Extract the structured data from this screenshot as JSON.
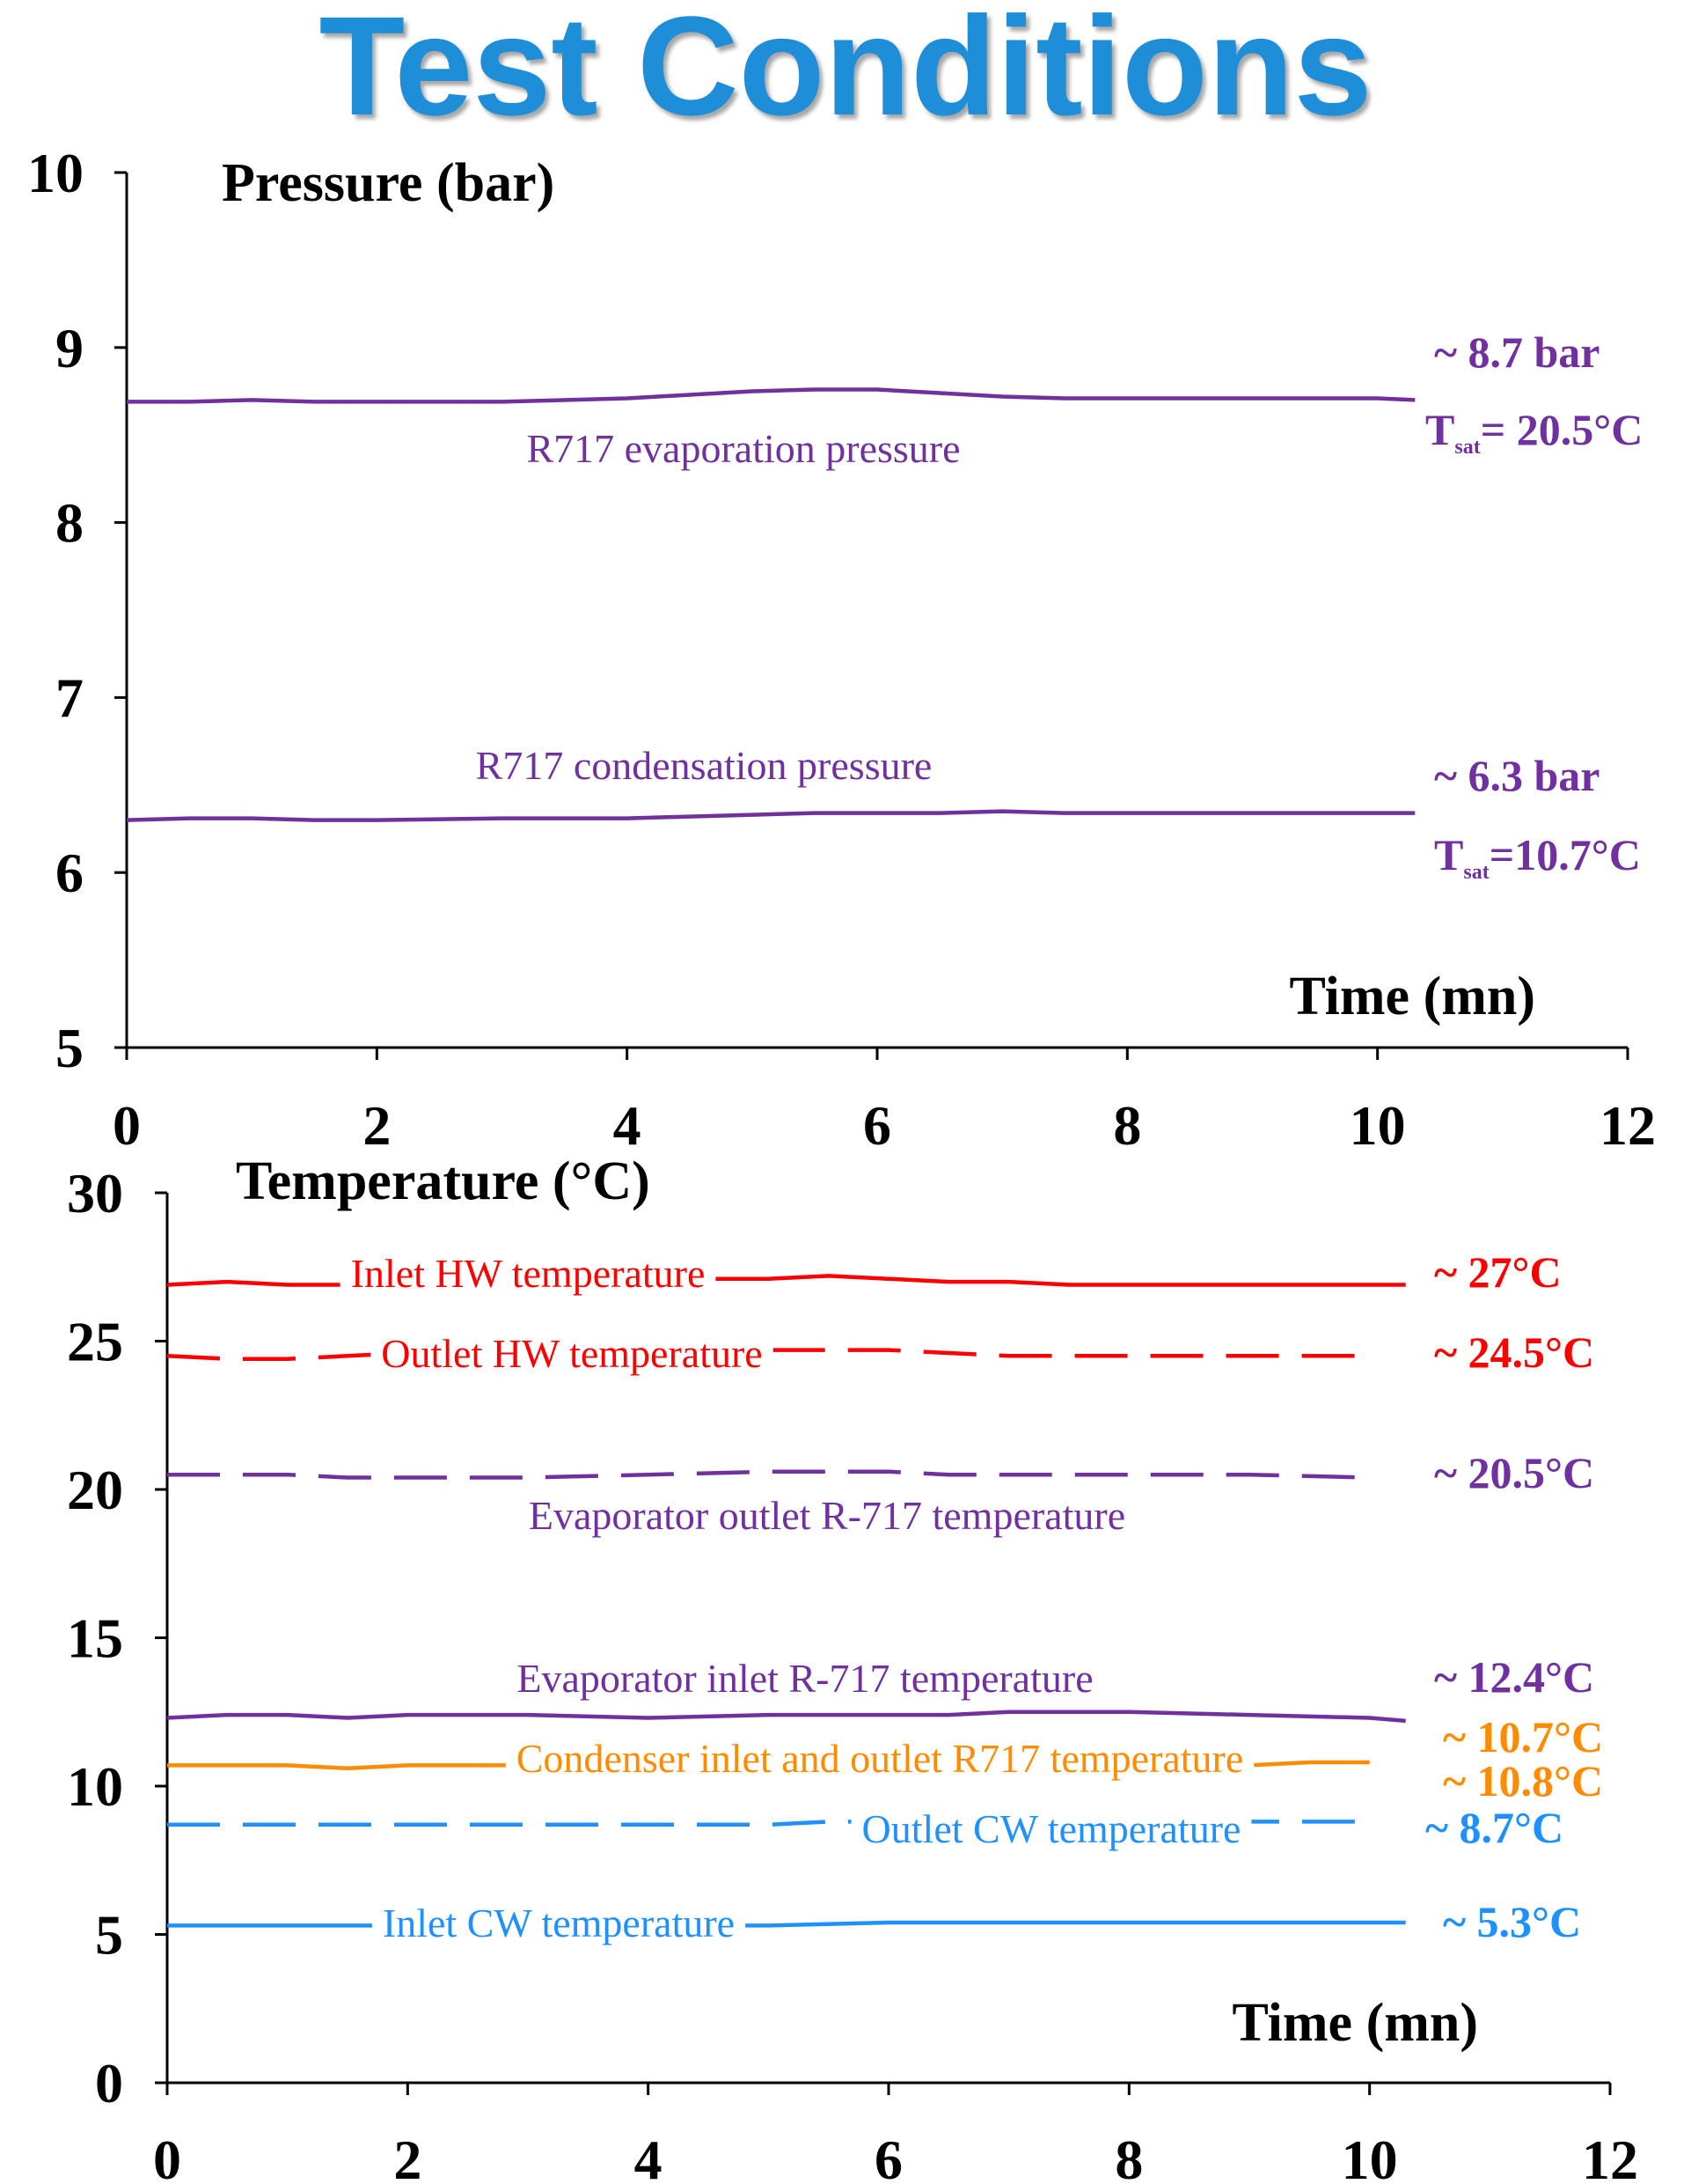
{
  "title": "Test Conditions",
  "chart_data": [
    {
      "type": "line",
      "title": "",
      "ylabel": "Pressure (bar)",
      "xlabel": "Time (mn)",
      "xlim": [
        0,
        12
      ],
      "ylim": [
        5,
        10
      ],
      "xticks": [
        "0",
        "2",
        "4",
        "6",
        "8",
        "10",
        "12"
      ],
      "yticks": [
        "5",
        "6",
        "7",
        "8",
        "9",
        "10"
      ],
      "grid": false,
      "series": [
        {
          "name": "R717 evaporation pressure",
          "color": "#7030a0",
          "style": "solid",
          "x": [
            0,
            0.5,
            1,
            1.5,
            2,
            3,
            4,
            4.5,
            5,
            5.5,
            6,
            6.5,
            7,
            7.5,
            8,
            8.5,
            9,
            9.5,
            10,
            10.3
          ],
          "y": [
            8.69,
            8.69,
            8.7,
            8.69,
            8.69,
            8.69,
            8.71,
            8.73,
            8.75,
            8.76,
            8.76,
            8.74,
            8.72,
            8.71,
            8.71,
            8.71,
            8.71,
            8.71,
            8.71,
            8.7
          ]
        },
        {
          "name": "R717 condensation pressure",
          "color": "#7030a0",
          "style": "solid",
          "x": [
            0,
            0.5,
            1,
            1.5,
            2,
            3,
            4,
            4.5,
            5,
            5.5,
            6,
            6.5,
            7,
            7.5,
            8,
            8.5,
            9,
            9.5,
            10,
            10.3
          ],
          "y": [
            6.3,
            6.31,
            6.31,
            6.3,
            6.3,
            6.31,
            6.31,
            6.32,
            6.33,
            6.34,
            6.34,
            6.34,
            6.35,
            6.34,
            6.34,
            6.34,
            6.34,
            6.34,
            6.34,
            6.34
          ]
        }
      ],
      "annotations": [
        {
          "text": "~ 8.7 bar",
          "color": "#7030a0"
        },
        {
          "text_main": "T",
          "text_sub": "sat",
          "text_rest": "= 20.5°C",
          "color": "#7030a0"
        },
        {
          "text": "~ 6.3 bar",
          "color": "#7030a0"
        },
        {
          "text_main": "T",
          "text_sub": "sat",
          "text_rest": "=10.7°C",
          "color": "#7030a0"
        }
      ]
    },
    {
      "type": "line",
      "title": "",
      "ylabel": "Temperature (°C)",
      "xlabel": "Time (mn)",
      "xlim": [
        0,
        12
      ],
      "ylim": [
        0,
        30
      ],
      "xticks": [
        "0",
        "2",
        "4",
        "6",
        "8",
        "10",
        "12"
      ],
      "yticks": [
        "0",
        "5",
        "10",
        "15",
        "20",
        "25",
        "30"
      ],
      "grid": false,
      "series": [
        {
          "name": "Inlet HW temperature",
          "color": "#ff0000",
          "style": "solid",
          "x": [
            0,
            0.5,
            1,
            1.5,
            2,
            3,
            4,
            5,
            5.5,
            6,
            6.5,
            7,
            7.5,
            8,
            9,
            10,
            10.3
          ],
          "y": [
            26.9,
            27.0,
            26.9,
            26.9,
            27.0,
            27.0,
            27.1,
            27.1,
            27.2,
            27.1,
            27.0,
            27.0,
            26.9,
            26.9,
            26.9,
            26.9,
            26.9
          ]
        },
        {
          "name": "Outlet HW temperature",
          "color": "#ff0000",
          "style": "dashed",
          "x": [
            0,
            0.5,
            1,
            1.5,
            2,
            3,
            4,
            5,
            5.5,
            6,
            6.5,
            7,
            7.5,
            8,
            9,
            10
          ],
          "y": [
            24.5,
            24.4,
            24.4,
            24.5,
            24.6,
            24.6,
            24.6,
            24.7,
            24.7,
            24.7,
            24.6,
            24.5,
            24.5,
            24.5,
            24.5,
            24.5
          ]
        },
        {
          "name": "Evaporator outlet R-717 temperature",
          "color": "#7030a0",
          "style": "dashed",
          "x": [
            0,
            0.5,
            1,
            1.5,
            2,
            3,
            4,
            5,
            5.5,
            6,
            6.5,
            7,
            7.5,
            8,
            9,
            10
          ],
          "y": [
            20.5,
            20.5,
            20.5,
            20.4,
            20.4,
            20.4,
            20.5,
            20.6,
            20.6,
            20.6,
            20.5,
            20.5,
            20.5,
            20.5,
            20.5,
            20.4
          ]
        },
        {
          "name": "Evaporator inlet R-717 temperature",
          "color": "#7030a0",
          "style": "solid",
          "x": [
            0,
            0.5,
            1,
            1.5,
            2,
            3,
            4,
            5,
            5.5,
            6,
            6.5,
            7,
            7.5,
            8,
            9,
            10,
            10.3
          ],
          "y": [
            12.3,
            12.4,
            12.4,
            12.3,
            12.4,
            12.4,
            12.3,
            12.4,
            12.4,
            12.4,
            12.4,
            12.5,
            12.5,
            12.5,
            12.4,
            12.3,
            12.2
          ]
        },
        {
          "name": "Condenser inlet and outlet R717 temperature",
          "color": "#ff8c00",
          "style": "solid",
          "x": [
            0,
            0.5,
            1,
            1.5,
            2,
            2.5,
            3,
            4,
            5,
            6,
            7,
            8,
            9,
            9.5,
            10
          ],
          "y": [
            10.7,
            10.7,
            10.7,
            10.6,
            10.7,
            10.7,
            10.7,
            10.7,
            10.7,
            10.7,
            10.7,
            10.7,
            10.7,
            10.8,
            10.8
          ]
        },
        {
          "name": "Outlet CW temperature",
          "color": "#1e90ff",
          "style": "dashed",
          "x": [
            0,
            1,
            2,
            3,
            4,
            5,
            5.5,
            6,
            7,
            8,
            9,
            10
          ],
          "y": [
            8.7,
            8.7,
            8.7,
            8.7,
            8.7,
            8.7,
            8.8,
            8.8,
            8.8,
            8.8,
            8.8,
            8.8
          ]
        },
        {
          "name": "Inlet CW temperature",
          "color": "#1e90ff",
          "style": "solid",
          "x": [
            0,
            1,
            2,
            3,
            4,
            5,
            6,
            7,
            8,
            9,
            10,
            10.3
          ],
          "y": [
            5.3,
            5.3,
            5.3,
            5.3,
            5.3,
            5.3,
            5.4,
            5.4,
            5.4,
            5.4,
            5.4,
            5.4
          ]
        }
      ],
      "annotations": [
        {
          "text": "~ 27°C",
          "color": "#ff0000"
        },
        {
          "text": "~ 24.5°C",
          "color": "#ff0000"
        },
        {
          "text": "~ 20.5°C",
          "color": "#7030a0"
        },
        {
          "text": "~ 12.4°C",
          "color": "#7030a0"
        },
        {
          "text": "~ 10.7°C",
          "color": "#ff8c00"
        },
        {
          "text": "~ 10.8°C",
          "color": "#ff8c00"
        },
        {
          "text": "~ 8.7°C",
          "color": "#1e90ff"
        },
        {
          "text": "~ 5.3°C",
          "color": "#1e90ff"
        }
      ]
    }
  ]
}
